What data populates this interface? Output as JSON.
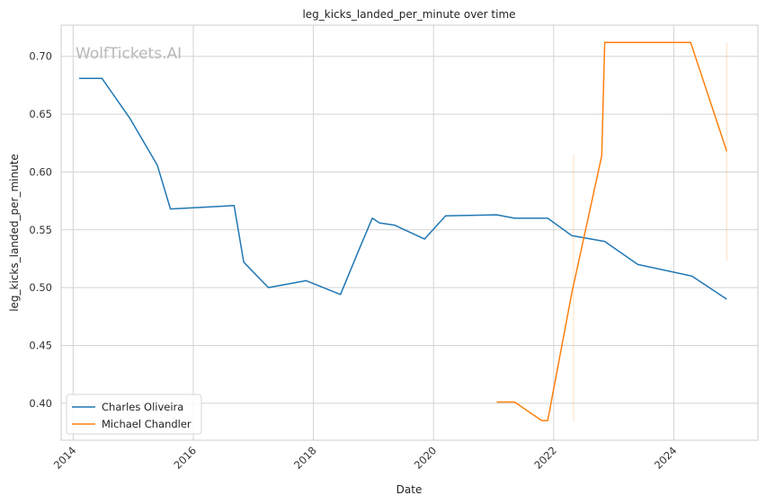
{
  "chart_data": {
    "type": "line",
    "title": "leg_kicks_landed_per_minute over time",
    "xlabel": "Date",
    "ylabel": "leg_kicks_landed_per_minute",
    "watermark": "WolfTickets.AI",
    "xlim": [
      2013.8,
      2025.4
    ],
    "ylim": [
      0.368,
      0.727
    ],
    "x_ticks": [
      {
        "value": 2014,
        "label": "2014"
      },
      {
        "value": 2016,
        "label": "2016"
      },
      {
        "value": 2018,
        "label": "2018"
      },
      {
        "value": 2020,
        "label": "2020"
      },
      {
        "value": 2022,
        "label": "2022"
      },
      {
        "value": 2024,
        "label": "2024"
      }
    ],
    "y_ticks": [
      {
        "value": 0.4,
        "label": "0.40"
      },
      {
        "value": 0.45,
        "label": "0.45"
      },
      {
        "value": 0.5,
        "label": "0.50"
      },
      {
        "value": 0.55,
        "label": "0.55"
      },
      {
        "value": 0.6,
        "label": "0.60"
      },
      {
        "value": 0.65,
        "label": "0.65"
      },
      {
        "value": 0.7,
        "label": "0.70"
      }
    ],
    "grid": true,
    "legend_position": "bottom-left",
    "series": [
      {
        "name": "Charles Oliveira",
        "color": "#1f77b4",
        "x": [
          2014.1,
          2014.48,
          2014.95,
          2015.4,
          2015.62,
          2016.68,
          2016.84,
          2017.25,
          2017.88,
          2018.45,
          2018.8,
          2018.98,
          2019.1,
          2019.35,
          2019.85,
          2020.2,
          2021.05,
          2021.35,
          2021.9,
          2022.3,
          2022.85,
          2023.4,
          2024.3,
          2024.88
        ],
        "y": [
          0.681,
          0.681,
          0.646,
          0.606,
          0.568,
          0.571,
          0.522,
          0.5,
          0.506,
          0.494,
          0.538,
          0.56,
          0.556,
          0.554,
          0.542,
          0.562,
          0.563,
          0.56,
          0.56,
          0.545,
          0.54,
          0.52,
          0.51,
          0.49
        ]
      },
      {
        "name": "Michael Chandler",
        "color": "#ff7f0e",
        "x": [
          2021.05,
          2021.35,
          2021.8,
          2021.9,
          2022.3,
          2022.8,
          2022.85,
          2024.28,
          2024.88
        ],
        "y": [
          0.401,
          0.401,
          0.385,
          0.385,
          0.495,
          0.614,
          0.712,
          0.712,
          0.618
        ]
      }
    ],
    "error_bars": [
      {
        "series": "Michael Chandler",
        "x": 2022.33,
        "low": 0.384,
        "high": 0.615
      },
      {
        "series": "Michael Chandler",
        "x": 2024.88,
        "low": 0.523,
        "high": 0.712
      }
    ]
  }
}
